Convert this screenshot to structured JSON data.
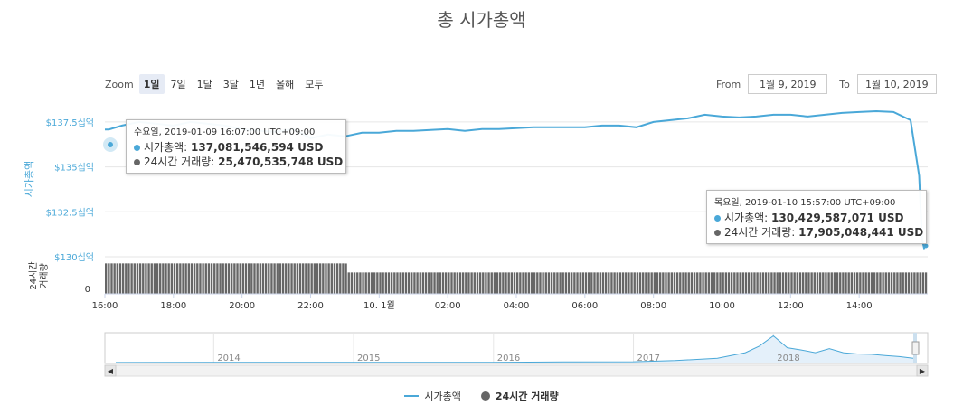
{
  "title": "총 시가총액",
  "zoom": {
    "label": "Zoom",
    "buttons": [
      "1일",
      "7일",
      "1달",
      "3달",
      "1년",
      "올해",
      "모두"
    ],
    "active": 0
  },
  "range": {
    "from_label": "From",
    "from_value": "1월 9, 2019",
    "to_label": "To",
    "to_value": "1월 10, 2019"
  },
  "tooltip_left": {
    "timestamp": "수요일, 2019-01-09 16:07:00 UTC+09:00",
    "marketcap_label": "시가총액",
    "marketcap_value": "137,081,546,594 USD",
    "volume_label": "24시간 거래량",
    "volume_value": "25,470,535,748 USD"
  },
  "tooltip_right": {
    "timestamp": "목요일, 2019-01-10 15:57:00 UTC+09:00",
    "marketcap_label": "시가총액",
    "marketcap_value": "130,429,587,071 USD",
    "volume_label": "24시간 거래량",
    "volume_value": "17,905,048,441 USD"
  },
  "legend": {
    "marketcap": "시가총액",
    "volume": "24시간 거래량"
  },
  "colors": {
    "marketcap": "#4aa8d8",
    "volume": "#666666",
    "navigator_fill": "#e4f0fa"
  },
  "chart_data": {
    "type": "line",
    "x_tick_labels": [
      "16:00",
      "18:00",
      "20:00",
      "22:00",
      "10. 1월",
      "02:00",
      "04:00",
      "06:00",
      "08:00",
      "10:00",
      "12:00",
      "14:00"
    ],
    "y_tick_labels": [
      "$137.5십억",
      "$135십억",
      "$132.5십억",
      "$130십억"
    ],
    "y_ticks": [
      137.5,
      135,
      132.5,
      130
    ],
    "ylim": [
      130,
      138.5
    ],
    "ylabel": "시가총액",
    "volume_axis_label": "24시간 거래량",
    "volume_axis_tick": "0",
    "series": [
      {
        "name": "시가총액",
        "unit": "십억 USD",
        "x_hours": [
          0,
          0.12,
          0.5,
          1,
          1.5,
          2,
          2.5,
          3,
          3.5,
          4,
          4.5,
          5,
          5.5,
          6,
          6.5,
          7,
          7.5,
          8,
          8.5,
          9,
          9.5,
          10,
          10.5,
          11,
          11.5,
          12,
          12.5,
          13,
          13.5,
          14,
          14.5,
          15,
          15.5,
          16,
          16.5,
          17,
          17.5,
          18,
          18.5,
          19,
          19.5,
          20,
          20.5,
          21,
          21.5,
          22,
          22.5,
          23,
          23.5,
          23.75,
          23.83,
          23.9
        ],
        "values": [
          137.08,
          137.08,
          137.3,
          137.5,
          137.4,
          137.3,
          137.5,
          137.4,
          137.3,
          137.1,
          137.0,
          136.95,
          137.1,
          136.6,
          136.8,
          136.7,
          136.9,
          136.9,
          137.0,
          137.0,
          137.05,
          137.1,
          137.0,
          137.1,
          137.1,
          137.15,
          137.2,
          137.2,
          137.2,
          137.2,
          137.3,
          137.3,
          137.2,
          137.5,
          137.6,
          137.7,
          137.9,
          137.8,
          137.75,
          137.8,
          137.9,
          137.9,
          137.8,
          137.9,
          138.0,
          138.05,
          138.1,
          138.05,
          137.6,
          134.5,
          131.0,
          130.43
        ]
      },
      {
        "name": "24시간 거래량",
        "unit": "십억 USD",
        "x_hours": [
          0,
          7,
          7.01,
          24
        ],
        "values": [
          25.47,
          25.4,
          17.9,
          17.9
        ]
      }
    ],
    "navigator": {
      "year_labels": [
        "2014",
        "2015",
        "2016",
        "2017",
        "2018"
      ],
      "x_years": [
        2013.3,
        2014,
        2015,
        2016,
        2016.5,
        2017,
        2017.3,
        2017.6,
        2017.8,
        2017.9,
        2018.0,
        2018.1,
        2018.2,
        2018.3,
        2018.4,
        2018.5,
        2018.6,
        2018.7,
        2018.8,
        2018.9,
        2019.0
      ],
      "values": [
        2,
        7,
        6,
        9,
        20,
        25,
        60,
        130,
        300,
        500,
        810,
        450,
        380,
        300,
        420,
        300,
        260,
        250,
        215,
        180,
        130
      ]
    }
  }
}
